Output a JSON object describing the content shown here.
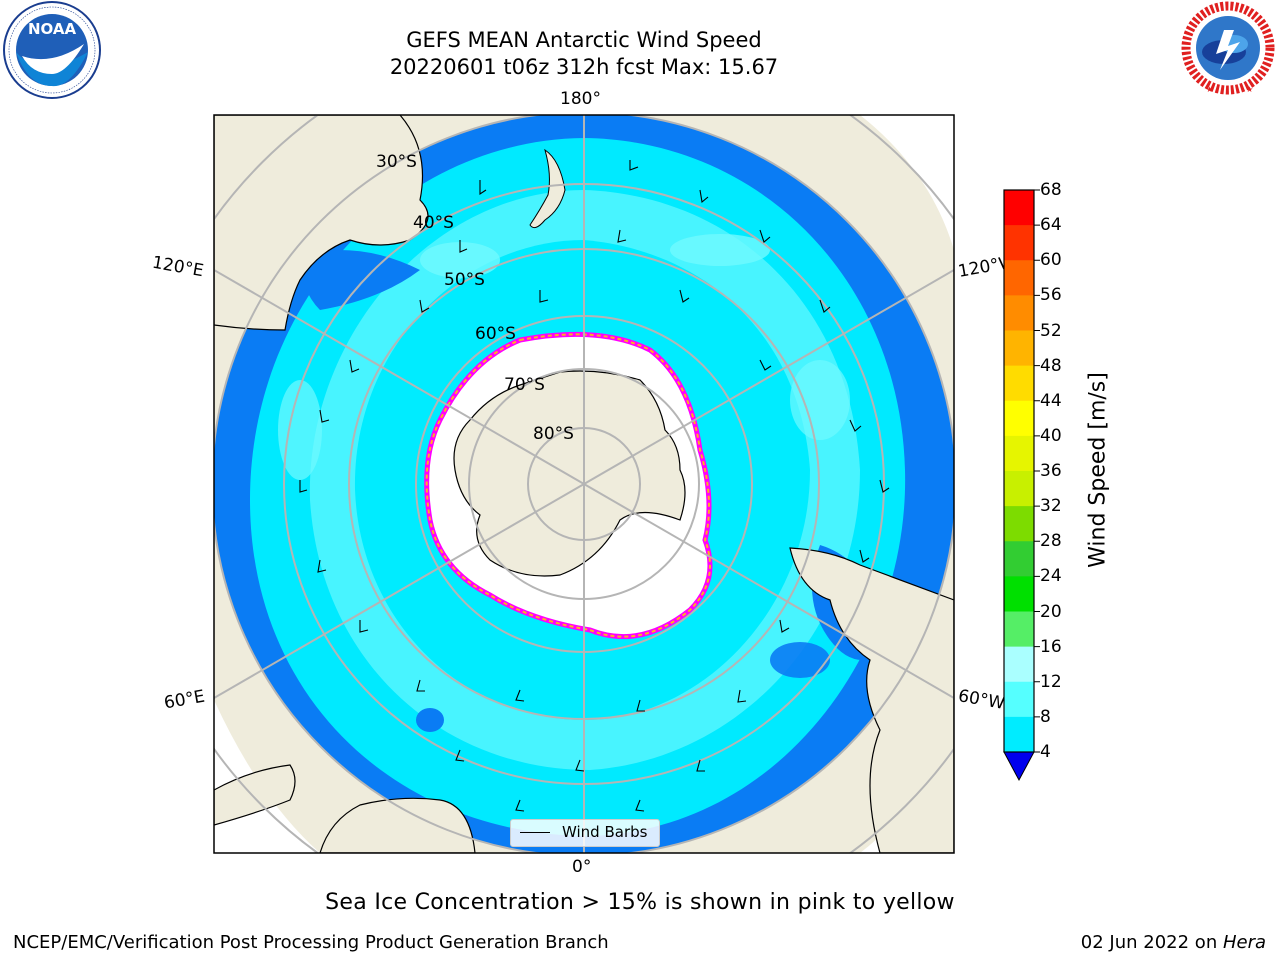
{
  "title": {
    "line1": "GEFS MEAN Antarctic Wind Speed",
    "line2": "20220601 t06z 312h fcst   Max: 15.67"
  },
  "logos": {
    "left": "noaa-logo",
    "left_text": "NOAA",
    "left_ring_text": "NATIONAL OCEANIC AND ATMOSPHERIC ADMINISTRATION · U.S. DEPARTMENT OF COMMERCE",
    "right": "nws-logo",
    "right_ring_text": "NATIONAL WEATHER SERVICE"
  },
  "map": {
    "projection": "south-polar-stereographic",
    "longitude_labels": [
      "180°",
      "120°E",
      "120°W",
      "60°E",
      "60°W",
      "0°"
    ],
    "latitude_labels": [
      "30°S",
      "40°S",
      "50°S",
      "60°S",
      "70°S",
      "80°S"
    ],
    "legend_label": "Wind Barbs",
    "sea_ice_colors": [
      "#ff00ff",
      "#ffa500",
      "#ffe000"
    ]
  },
  "colorbar": {
    "title": "Wind Speed [m/s]",
    "ticks": [
      "68",
      "64",
      "60",
      "56",
      "52",
      "48",
      "44",
      "40",
      "36",
      "32",
      "28",
      "24",
      "20",
      "16",
      "12",
      "8",
      "4"
    ],
    "colors": [
      "#ff0000",
      "#ff3300",
      "#ff6600",
      "#ff8c00",
      "#ffb400",
      "#ffdc00",
      "#ffff00",
      "#e6f500",
      "#c8f000",
      "#7ddc00",
      "#32cd32",
      "#00e000",
      "#55ee66",
      "#aaffff",
      "#55ffff",
      "#00ecff",
      "#0077ff"
    ],
    "extend_color": "#0000ee"
  },
  "caption": "Sea Ice Concentration > 15% is shown in pink to yellow",
  "footer": {
    "left": "NCEP/EMC/Verification Post Processing Product Generation Branch",
    "right_date": "02 Jun 2022 on ",
    "right_host": "Hera"
  }
}
